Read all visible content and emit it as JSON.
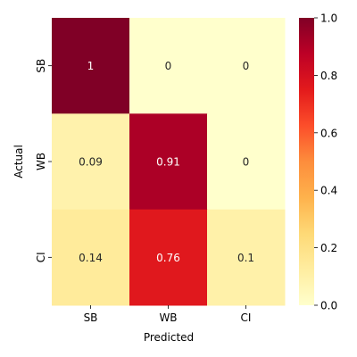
{
  "chart_data": {
    "type": "heatmap",
    "x_categories": [
      "SB",
      "WB",
      "CI"
    ],
    "y_categories": [
      "SB",
      "WB",
      "CI"
    ],
    "values": [
      [
        1,
        0,
        0
      ],
      [
        0.09,
        0.91,
        0
      ],
      [
        0.14,
        0.76,
        0.1
      ]
    ],
    "xlabel": "Predicted",
    "ylabel": "Actual",
    "colorbar": {
      "range": [
        0,
        1
      ],
      "ticks": [
        "0.0",
        "0.2",
        "0.4",
        "0.6",
        "0.8",
        "1.0"
      ],
      "colormap": "YlOrRd"
    }
  }
}
